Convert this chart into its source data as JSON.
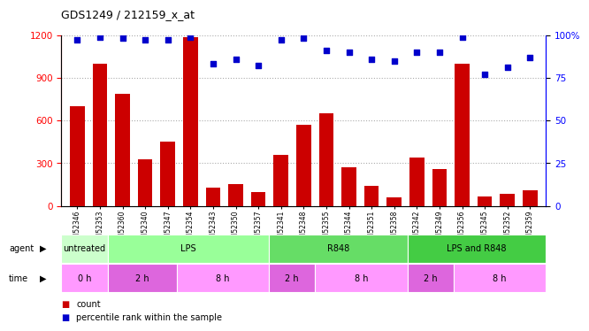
{
  "title": "GDS1249 / 212159_x_at",
  "samples": [
    "GSM52346",
    "GSM52353",
    "GSM52360",
    "GSM52340",
    "GSM52347",
    "GSM52354",
    "GSM52343",
    "GSM52350",
    "GSM52357",
    "GSM52341",
    "GSM52348",
    "GSM52355",
    "GSM52344",
    "GSM52351",
    "GSM52358",
    "GSM52342",
    "GSM52349",
    "GSM52356",
    "GSM52345",
    "GSM52352",
    "GSM52359"
  ],
  "counts": [
    700,
    1000,
    790,
    330,
    450,
    1185,
    130,
    155,
    100,
    360,
    570,
    650,
    270,
    140,
    60,
    340,
    260,
    1000,
    65,
    85,
    110
  ],
  "percentiles": [
    97,
    99,
    98,
    97,
    97,
    99,
    83,
    86,
    82,
    97,
    98,
    91,
    90,
    86,
    85,
    90,
    90,
    99,
    77,
    81,
    87
  ],
  "bar_color": "#cc0000",
  "dot_color": "#0000cc",
  "ylim_left": [
    0,
    1200
  ],
  "ylim_right": [
    0,
    100
  ],
  "yticks_left": [
    0,
    300,
    600,
    900,
    1200
  ],
  "yticks_right": [
    0,
    25,
    50,
    75,
    100
  ],
  "agent_groups": [
    {
      "label": "untreated",
      "start": 0,
      "end": 2,
      "color": "#ccffcc"
    },
    {
      "label": "LPS",
      "start": 2,
      "end": 9,
      "color": "#99ff99"
    },
    {
      "label": "R848",
      "start": 9,
      "end": 15,
      "color": "#66dd66"
    },
    {
      "label": "LPS and R848",
      "start": 15,
      "end": 21,
      "color": "#44cc44"
    }
  ],
  "time_groups": [
    {
      "label": "0 h",
      "start": 0,
      "end": 2,
      "color": "#ff99ff"
    },
    {
      "label": "2 h",
      "start": 2,
      "end": 5,
      "color": "#dd66dd"
    },
    {
      "label": "8 h",
      "start": 5,
      "end": 9,
      "color": "#ff99ff"
    },
    {
      "label": "2 h",
      "start": 9,
      "end": 11,
      "color": "#dd66dd"
    },
    {
      "label": "8 h",
      "start": 11,
      "end": 15,
      "color": "#ff99ff"
    },
    {
      "label": "2 h",
      "start": 15,
      "end": 17,
      "color": "#dd66dd"
    },
    {
      "label": "8 h",
      "start": 17,
      "end": 21,
      "color": "#ff99ff"
    }
  ],
  "background_color": "#ffffff",
  "grid_color": "#aaaaaa"
}
